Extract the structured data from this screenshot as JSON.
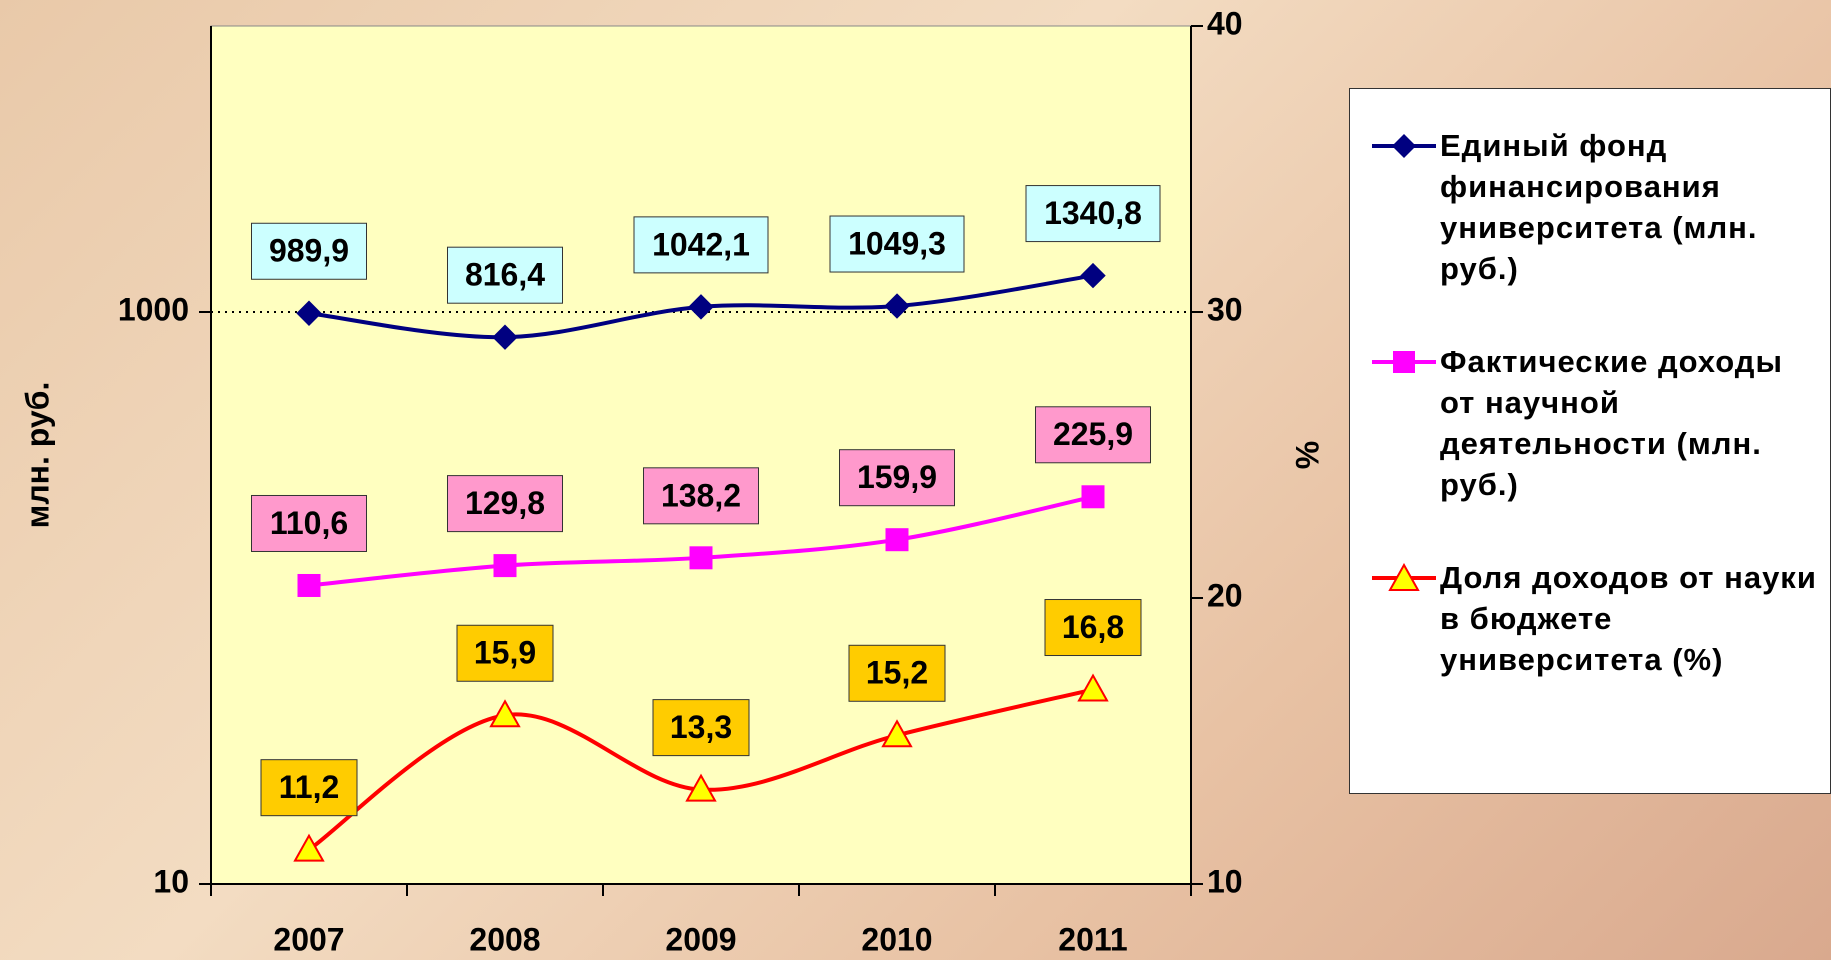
{
  "chart_data": {
    "type": "line",
    "categories": [
      "2007",
      "2008",
      "2009",
      "2010",
      "2011"
    ],
    "ylabel": "млн. руб.",
    "y2label": "%",
    "ylim": [
      10,
      10000
    ],
    "yticks": [
      10,
      1000
    ],
    "log_y": true,
    "y2lim": [
      10,
      40
    ],
    "y2ticks": [
      10,
      20,
      30,
      40
    ],
    "grid": true,
    "legend": "right",
    "series": [
      {
        "name": "Единый фонд финансирования университета (млн. руб.)",
        "color": "#000080",
        "marker": "diamond",
        "label_fill": "#ccffff",
        "values": [
          989.9,
          816.4,
          1042.1,
          1049.3,
          1340.8
        ],
        "value_labels": [
          "989,9",
          "816,4",
          "1042,1",
          "1049,3",
          "1340,8"
        ]
      },
      {
        "name": "Фактические доходы от научной деятельности (млн. руб.)",
        "color": "#ff00ff",
        "marker": "square",
        "label_fill": "#ff99cc",
        "values": [
          110.6,
          129.8,
          138.2,
          159.9,
          225.9
        ],
        "value_labels": [
          "110,6",
          "129,8",
          "138,2",
          "159,9",
          "225,9"
        ]
      },
      {
        "name": "Доля доходов от науки в бюджете университета (%)",
        "color": "#ff0000",
        "marker": "triangle",
        "label_fill": "#ffcc00",
        "axis": "y2",
        "values": [
          11.2,
          15.9,
          13.3,
          15.2,
          16.8
        ],
        "value_labels": [
          "11,2",
          "15,9",
          "13,3",
          "15,2",
          "16,8"
        ]
      }
    ]
  }
}
